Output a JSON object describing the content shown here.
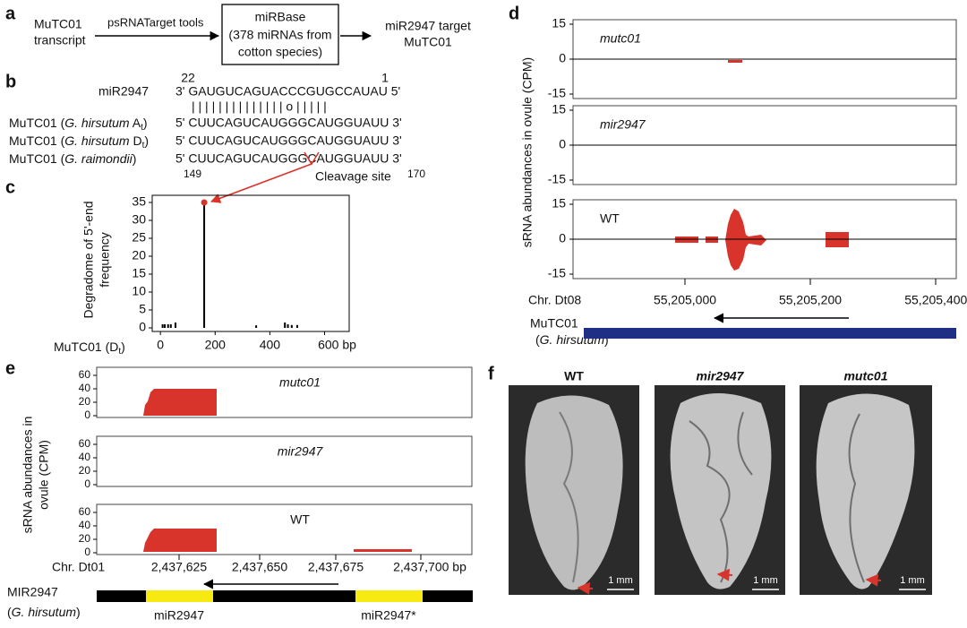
{
  "panel_labels": [
    "a",
    "b",
    "c",
    "d",
    "e",
    "f"
  ],
  "a": {
    "source": [
      "MuTC01",
      "transcript"
    ],
    "tool": "psRNATarget tools",
    "database": [
      "miRBase",
      "(378 miRNAs from",
      "cotton species)"
    ],
    "result": [
      "miR2947 target",
      "MuTC01"
    ]
  },
  "b": {
    "pos_start": "22",
    "pos_end": "1",
    "mirna_name": "miR2947",
    "mirna_seq": "3' GAUGUCAGUACCCGUGCCAUAU 5'",
    "pairing": "|  |  |  | | | | | | | | | | |  o  | | | | |",
    "targets": [
      {
        "prefix": "MuTC01 (",
        "species": "G. hirsutum",
        "genome": " A",
        "sub": "t",
        "suffix": ")",
        "seq": "5' CUUCAGUCAUGGGCAUGGUAUU 3'"
      },
      {
        "prefix": "MuTC01 (",
        "species": "G. hirsutum",
        "genome": " D",
        "sub": "t",
        "suffix": ")",
        "seq": "5' CUUCAGUCAUGGGCAUGGUAUU 3'"
      },
      {
        "prefix": "MuTC01 (",
        "species": "G. raimondii",
        "suffix": ")",
        "seq": "5' CUUCAGUCAUGGGCAUGGUAUU 3'"
      }
    ],
    "range_start": "149",
    "range_end": "170",
    "cleavage": "Cleavage site"
  },
  "chart_data": [
    {
      "type": "bar",
      "ylabel": [
        "Degradome of 5'-end",
        "frequency"
      ],
      "xlabel": {
        "prefix": "MuTC01 (D",
        "sub": "t",
        "suffix": ")"
      },
      "x": [
        8,
        16,
        28,
        38,
        55,
        160,
        350,
        455,
        466,
        480,
        500
      ],
      "values": [
        1,
        1,
        1,
        1,
        1.5,
        35,
        0.7,
        1.5,
        1,
        0.8,
        0.8
      ],
      "color": "#000000",
      "peak_color": "#d9342b",
      "xlim": [
        -30,
        690
      ],
      "ylim": [
        -1,
        37
      ],
      "xticks": [
        0,
        200,
        400,
        {
          "value": 600,
          "label": "600 bp"
        }
      ],
      "yticks": [
        0,
        5,
        10,
        15,
        20,
        25,
        30,
        35
      ]
    }
  ],
  "d": {
    "ylabel": "sRNA abundances in ovule (CPM)",
    "yticks": [
      15,
      0,
      -15
    ],
    "tracks": [
      "mutc01",
      "mir2947",
      "WT"
    ],
    "chr": "Chr. Dt08",
    "xticks": [
      "55,205,000",
      "55,205,200",
      "55,205,400 bp"
    ],
    "gene": "MuTC01",
    "gene_species": {
      "prefix": "(",
      "species": "G. hirsutum",
      "suffix": ")"
    }
  },
  "e": {
    "ylabel": [
      "sRNA abundances in",
      "ovule (CPM)"
    ],
    "yticks": [
      60,
      40,
      20,
      0
    ],
    "tracks": [
      "mutc01",
      "mir2947",
      "WT"
    ],
    "chr": "Chr. Dt01",
    "xticks": [
      "2,437,625",
      "2,437,650",
      "2,437,675",
      "2,437,700 bp"
    ],
    "gene": "MIR2947",
    "gene_species": {
      "prefix": "(",
      "species": "G. hirsutum",
      "suffix": ")"
    },
    "features": [
      "miR2947",
      "miR2947*"
    ]
  },
  "f": {
    "titles": [
      "WT",
      "mir2947",
      "mutc01"
    ],
    "scale": "1 mm"
  }
}
